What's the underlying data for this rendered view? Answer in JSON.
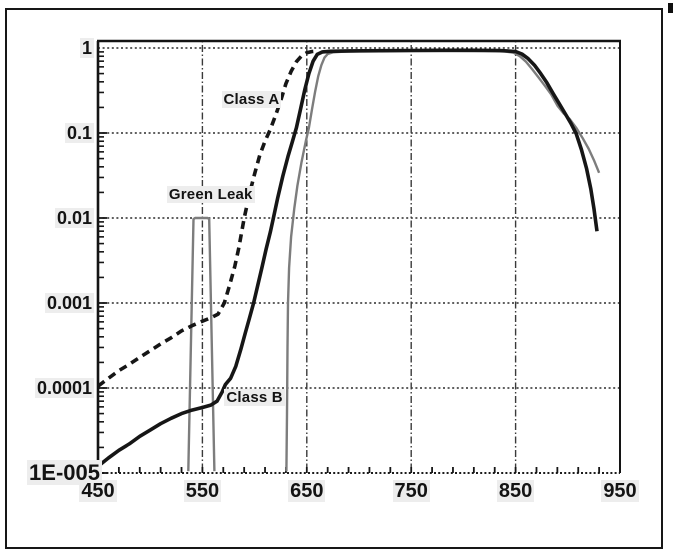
{
  "figure": {
    "background": "#ffffff",
    "border_color": "#171717",
    "curve_dark_color": "#161616",
    "curve_gray_color": "#7d7d7d"
  },
  "chart_data": {
    "type": "line",
    "title": "",
    "xlabel": "",
    "ylabel": "",
    "x_axis": {
      "range": [
        450,
        950
      ],
      "tick_labels": [
        "450",
        "550",
        "650",
        "750",
        "850",
        "950"
      ],
      "tick_values": [
        450,
        550,
        650,
        750,
        850,
        950
      ],
      "minor_tick_step": 20
    },
    "y_axis": {
      "scale": "log",
      "range": [
        1e-05,
        1
      ],
      "tick_labels": [
        "1",
        "0.1",
        "0.01",
        "0.001",
        "0.0001",
        "1E-005"
      ],
      "tick_values": [
        1,
        0.1,
        0.01,
        0.001,
        0.0001,
        1e-05
      ]
    },
    "grid": {
      "horizontal_style": "dotted",
      "vertical_style": "dash-dot",
      "vertical_at": [
        550,
        650,
        750,
        850
      ]
    },
    "legend": "inline text labels",
    "series": [
      {
        "name": "Class A",
        "style": "dashed",
        "color": "#161616",
        "width": 3.6,
        "points": [
          [
            450,
            0.000105
          ],
          [
            460,
            0.00013
          ],
          [
            470,
            0.00016
          ],
          [
            480,
            0.00019
          ],
          [
            490,
            0.00023
          ],
          [
            500,
            0.000275
          ],
          [
            510,
            0.00033
          ],
          [
            520,
            0.00039
          ],
          [
            530,
            0.00047
          ],
          [
            540,
            0.00054
          ],
          [
            550,
            0.00061
          ],
          [
            558,
            0.00067
          ],
          [
            565,
            0.00074
          ],
          [
            571,
            0.001
          ],
          [
            576,
            0.0016
          ],
          [
            581,
            0.0027
          ],
          [
            585,
            0.0045
          ],
          [
            590,
            0.01
          ],
          [
            595,
            0.019
          ],
          [
            600,
            0.033
          ],
          [
            605,
            0.055
          ],
          [
            610,
            0.08
          ],
          [
            615,
            0.11
          ],
          [
            620,
            0.16
          ],
          [
            625,
            0.24
          ],
          [
            630,
            0.38
          ],
          [
            635,
            0.53
          ],
          [
            640,
            0.69
          ],
          [
            645,
            0.81
          ],
          [
            650,
            0.88
          ],
          [
            655,
            0.91
          ],
          [
            660,
            0.92
          ]
        ]
      },
      {
        "name": "Class B",
        "style": "solid",
        "color": "#161616",
        "width": 3.6,
        "points": [
          [
            450,
            1.2e-05
          ],
          [
            460,
            1.5e-05
          ],
          [
            470,
            1.85e-05
          ],
          [
            480,
            2.2e-05
          ],
          [
            490,
            2.7e-05
          ],
          [
            500,
            3.2e-05
          ],
          [
            510,
            3.8e-05
          ],
          [
            520,
            4.4e-05
          ],
          [
            530,
            5e-05
          ],
          [
            540,
            5.5e-05
          ],
          [
            550,
            5.9e-05
          ],
          [
            558,
            6.3e-05
          ],
          [
            564,
            7e-05
          ],
          [
            569,
            9e-05
          ],
          [
            572,
            0.00011
          ],
          [
            577,
            0.00013
          ],
          [
            582,
            0.00018
          ],
          [
            587,
            0.00029
          ],
          [
            591,
            0.00044
          ],
          [
            595,
            0.00066
          ],
          [
            599,
            0.001
          ],
          [
            603,
            0.0016
          ],
          [
            607,
            0.0026
          ],
          [
            611,
            0.0043
          ],
          [
            615,
            0.0068
          ],
          [
            618,
            0.01
          ],
          [
            622,
            0.017
          ],
          [
            627,
            0.031
          ],
          [
            632,
            0.053
          ],
          [
            636,
            0.078
          ],
          [
            640,
            0.115
          ],
          [
            644,
            0.19
          ],
          [
            648,
            0.32
          ],
          [
            652,
            0.5
          ],
          [
            656,
            0.7
          ],
          [
            660,
            0.84
          ],
          [
            665,
            0.9
          ],
          [
            672,
            0.915
          ],
          [
            690,
            0.925
          ],
          [
            720,
            0.93
          ],
          [
            750,
            0.935
          ],
          [
            780,
            0.94
          ],
          [
            810,
            0.94
          ],
          [
            835,
            0.935
          ],
          [
            850,
            0.91
          ],
          [
            856,
            0.85
          ],
          [
            862,
            0.75
          ],
          [
            868,
            0.63
          ],
          [
            874,
            0.5
          ],
          [
            880,
            0.39
          ],
          [
            886,
            0.29
          ],
          [
            892,
            0.22
          ],
          [
            898,
            0.165
          ],
          [
            903,
            0.13
          ],
          [
            908,
            0.098
          ],
          [
            913,
            0.064
          ],
          [
            918,
            0.038
          ],
          [
            922,
            0.022
          ],
          [
            925,
            0.013
          ],
          [
            928,
            0.007
          ]
        ]
      },
      {
        "name": "Green Leak",
        "style": "solid",
        "color": "#7d7d7d",
        "width": 2.4,
        "points": [
          [
            536.5,
            1.05e-05
          ],
          [
            541.5,
            0.0097
          ],
          [
            543,
            0.01
          ],
          [
            555,
            0.01
          ],
          [
            556.5,
            0.0097
          ],
          [
            561.5,
            1.05e-05
          ]
        ]
      },
      {
        "name": "gray filter curve (unlabeled)",
        "style": "solid",
        "color": "#7d7d7d",
        "width": 2.4,
        "points": [
          [
            630.5,
            1.05e-05
          ],
          [
            631,
            5e-05
          ],
          [
            631.5,
            0.0003
          ],
          [
            632,
            0.001
          ],
          [
            633,
            0.0026
          ],
          [
            635,
            0.006
          ],
          [
            638,
            0.013
          ],
          [
            641,
            0.024
          ],
          [
            645,
            0.046
          ],
          [
            649,
            0.08
          ],
          [
            652,
            0.115
          ],
          [
            655,
            0.19
          ],
          [
            658,
            0.31
          ],
          [
            661,
            0.47
          ],
          [
            664,
            0.63
          ],
          [
            667,
            0.77
          ],
          [
            670,
            0.85
          ],
          [
            675,
            0.89
          ],
          [
            685,
            0.905
          ],
          [
            700,
            0.915
          ],
          [
            730,
            0.92
          ],
          [
            760,
            0.925
          ],
          [
            790,
            0.925
          ],
          [
            820,
            0.92
          ],
          [
            840,
            0.91
          ],
          [
            848,
            0.88
          ],
          [
            854,
            0.8
          ],
          [
            860,
            0.69
          ],
          [
            866,
            0.56
          ],
          [
            872,
            0.45
          ],
          [
            878,
            0.36
          ],
          [
            884,
            0.285
          ],
          [
            890,
            0.21
          ],
          [
            896,
            0.17
          ],
          [
            902,
            0.145
          ],
          [
            908,
            0.115
          ],
          [
            914,
            0.088
          ],
          [
            920,
            0.065
          ],
          [
            925,
            0.048
          ],
          [
            930,
            0.034
          ]
        ]
      }
    ],
    "annotations": [
      {
        "text": "Class A",
        "x": 597,
        "y": 0.245
      },
      {
        "text": "Green Leak",
        "x": 558,
        "y": 0.0187
      },
      {
        "text": "Class B",
        "x": 600,
        "y": 7.6e-05
      }
    ]
  }
}
